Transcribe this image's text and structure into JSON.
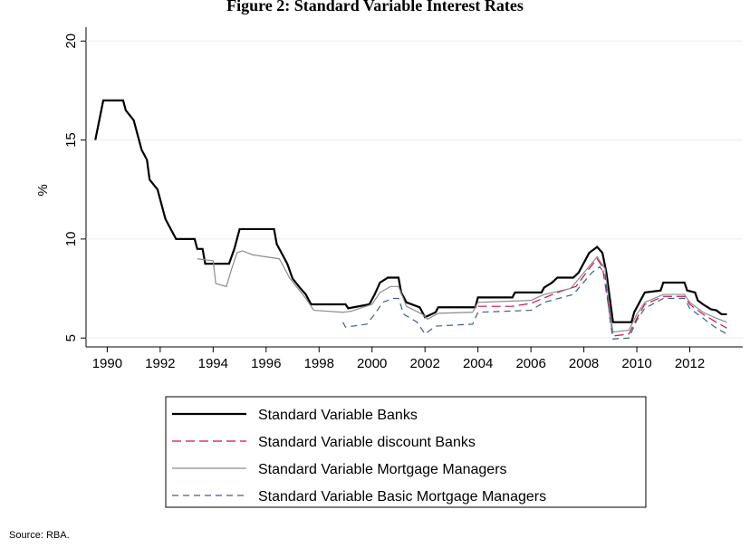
{
  "chart_data": {
    "type": "line",
    "title": "Figure 2: Standard Variable Interest Rates",
    "y_label": "%",
    "source": "Source: RBA.",
    "xlim": [
      1989.2,
      2014
    ],
    "xticks": [
      1990,
      1992,
      1994,
      1996,
      1998,
      2000,
      2002,
      2004,
      2006,
      2008,
      2010,
      2012
    ],
    "ylim": [
      4.55,
      20.7
    ],
    "yticks": [
      5,
      10,
      15,
      20
    ],
    "grid": true,
    "legend_position": "bottom",
    "series": [
      {
        "name": "Standard Variable Banks",
        "color": "#000000",
        "dash": "none",
        "width": 2.2,
        "x": [
          1989.55,
          1989.7,
          1989.85,
          1990.6,
          1990.7,
          1991,
          1991.1,
          1991.3,
          1991.5,
          1991.6,
          1991.9,
          1992,
          1992.2,
          1992.4,
          1992.6,
          1993.3,
          1993.4,
          1993.6,
          1993.7,
          1994.6,
          1994.8,
          1995,
          1996.3,
          1996.4,
          1996.6,
          1996.8,
          1997,
          1997.3,
          1997.5,
          1997.7,
          1999,
          1999.1,
          1999.9,
          2000.1,
          2000.3,
          2000.6,
          2001,
          2001.1,
          2001.3,
          2001.8,
          2002,
          2002.4,
          2002.5,
          2003.9,
          2004,
          2005.3,
          2005.4,
          2006.4,
          2006.5,
          2006.8,
          2007,
          2007.6,
          2007.8,
          2008,
          2008.2,
          2008.5,
          2008.7,
          2008.85,
          2009,
          2009.1,
          2009.8,
          2009.9,
          2010.1,
          2010.3,
          2010.9,
          2011,
          2011.8,
          2011.9,
          2012.2,
          2012.3,
          2012.5,
          2012.8,
          2013,
          2013.2,
          2013.4
        ],
        "values": [
          15,
          16,
          17,
          17,
          16.5,
          16,
          15.5,
          14.5,
          14,
          13,
          12.5,
          12,
          11,
          10.5,
          10,
          10,
          9.5,
          9.5,
          8.75,
          8.75,
          9.5,
          10.5,
          10.5,
          9.75,
          9.25,
          8.75,
          8,
          7.5,
          7.2,
          6.7,
          6.7,
          6.5,
          6.7,
          7.2,
          7.8,
          8.05,
          8.05,
          7.3,
          6.8,
          6.55,
          6.05,
          6.3,
          6.55,
          6.55,
          7.05,
          7.05,
          7.3,
          7.3,
          7.55,
          7.8,
          8.05,
          8.05,
          8.3,
          8.8,
          9.3,
          9.6,
          9.3,
          8.3,
          6.8,
          5.8,
          5.8,
          6.3,
          6.8,
          7.3,
          7.4,
          7.8,
          7.8,
          7.4,
          7.3,
          6.9,
          6.7,
          6.45,
          6.4,
          6.2,
          6.2
        ]
      },
      {
        "name": "Standard Variable discount Banks",
        "color": "#d0104c",
        "dash": "10,5",
        "width": 1.2,
        "x": [
          2004,
          2005.3,
          2006,
          2007,
          2007.7,
          2008.2,
          2008.5,
          2008.7,
          2009,
          2009.1,
          2009.7,
          2010,
          2010.3,
          2011,
          2011.8,
          2012,
          2012.5,
          2013,
          2013.4
        ],
        "values": [
          6.6,
          6.6,
          6.75,
          7.3,
          7.6,
          8.5,
          9,
          8.6,
          6,
          5.1,
          5.2,
          6,
          6.7,
          7.1,
          7.1,
          6.7,
          6.2,
          5.8,
          5.5
        ]
      },
      {
        "name": "Standard Variable Mortgage Managers",
        "color": "#8c8c8c",
        "dash": "none",
        "width": 1.2,
        "x": [
          1993.4,
          1994,
          1994.1,
          1994.5,
          1994.7,
          1994.9,
          1995.1,
          1995.5,
          1996.5,
          1996.9,
          1997.5,
          1997.8,
          1998.9,
          1999.2,
          2000,
          2000.3,
          2000.7,
          2001,
          2001.3,
          2001.9,
          2002.1,
          2002.5,
          2003.8,
          2004,
          2006,
          2006.5,
          2007.5,
          2008,
          2008.5,
          2008.8,
          2009,
          2009.1,
          2009.7,
          2010,
          2010.3,
          2011,
          2011.8,
          2012,
          2012.5,
          2013,
          2013.4
        ],
        "values": [
          9,
          8.9,
          7.75,
          7.6,
          8.5,
          9.3,
          9.4,
          9.2,
          9,
          8,
          7,
          6.4,
          6.3,
          6.35,
          6.7,
          7.3,
          7.6,
          7.6,
          6.6,
          6.2,
          5.95,
          6.25,
          6.3,
          6.8,
          6.9,
          7.2,
          7.5,
          8.3,
          9.1,
          8.5,
          6.2,
          5.3,
          5.4,
          6.2,
          6.8,
          7.2,
          7.2,
          6.8,
          6.3,
          6,
          5.8
        ]
      },
      {
        "name": "Standard Variable Basic Mortgage Managers",
        "color": "#3a5f8a",
        "dash": "7,5",
        "width": 1.2,
        "x": [
          1998.9,
          1999,
          1999.8,
          2000.1,
          2000.4,
          2000.8,
          2001,
          2001.2,
          2001.7,
          2002,
          2002.4,
          2003.8,
          2004,
          2006,
          2006.5,
          2007.6,
          2008.3,
          2008.6,
          2008.8,
          2009,
          2009.1,
          2009.7,
          2010,
          2010.3,
          2011,
          2011.8,
          2012,
          2012.5,
          2013,
          2013.4
        ],
        "values": [
          5.8,
          5.55,
          5.7,
          6.2,
          6.8,
          7,
          7,
          6.2,
          5.8,
          5.2,
          5.6,
          5.7,
          6.3,
          6.4,
          6.8,
          7.2,
          8.3,
          8.6,
          8.2,
          5.8,
          4.95,
          5,
          5.9,
          6.5,
          7,
          7,
          6.5,
          6,
          5.5,
          5.2
        ]
      }
    ]
  }
}
